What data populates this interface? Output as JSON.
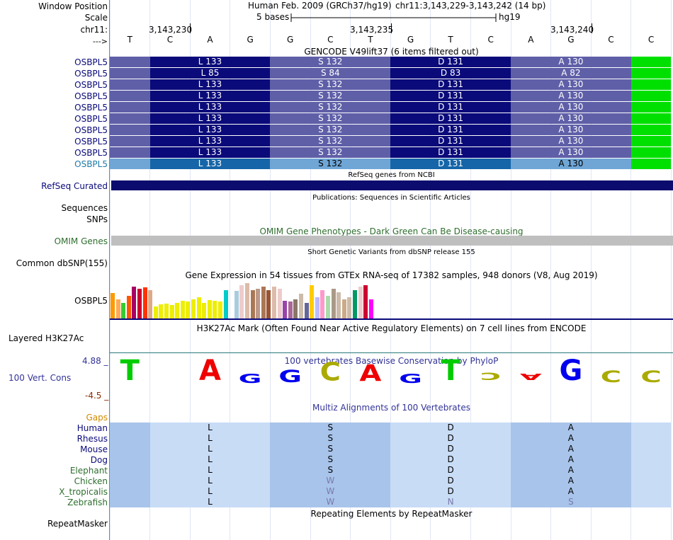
{
  "header": {
    "window_position_label": "Window Position",
    "scale_label": "Scale",
    "chrom_label": "chr11:",
    "strand_label": "--->",
    "assembly_title": "Human Feb. 2009 (GRCh37/hg19)",
    "position_text": "chr11:3,143,229-3,143,242 (14 bp)",
    "scale_text": "5 bases",
    "db_text": "hg19",
    "ticks": [
      "3,143,230",
      "3,143,235",
      "3,143,240"
    ]
  },
  "bases": [
    "T",
    "C",
    "A",
    "G",
    "G",
    "C",
    "T",
    "G",
    "T",
    "C",
    "A",
    "G",
    "C",
    "C"
  ],
  "gencode": {
    "title": "GENCODE V49lift37 (6 items filtered out)",
    "gene_label": "OSBPL5",
    "rows": [
      [
        "L 133",
        "S 132",
        "D 131",
        "A 130"
      ],
      [
        "L 85",
        "S 84",
        "D 83",
        "A 82"
      ],
      [
        "L 133",
        "S 132",
        "D 131",
        "A 130"
      ],
      [
        "L 133",
        "S 132",
        "D 131",
        "A 130"
      ],
      [
        "L 133",
        "S 132",
        "D 131",
        "A 130"
      ],
      [
        "L 133",
        "S 132",
        "D 131",
        "A 130"
      ],
      [
        "L 133",
        "S 132",
        "D 131",
        "A 130"
      ],
      [
        "L 133",
        "S 132",
        "D 131",
        "A 130"
      ],
      [
        "L 133",
        "S 132",
        "D 131",
        "A 130"
      ],
      [
        "L 133",
        "S 132",
        "D 131",
        "A 130"
      ]
    ]
  },
  "refseq": {
    "title": "RefSeq genes from NCBI",
    "label": "RefSeq Curated"
  },
  "publications": {
    "title": "Publications: Sequences in Scientific Articles",
    "label1": "Sequences",
    "label2": "SNPs"
  },
  "omim": {
    "title": "OMIM Gene Phenotypes - Dark Green Can Be Disease-causing",
    "label": "OMIM Genes"
  },
  "dbsnp": {
    "title": "Short Genetic Variants from dbSNP release 155",
    "label": "Common dbSNP(155)"
  },
  "gtex": {
    "title": "Gene Expression in 54 tissues from GTEx RNA-seq of 17382 samples, 948 donors (V8, Aug 2019)",
    "label": "OSBPL5",
    "bars": [
      {
        "c": "#ff9900",
        "h": 0.72
      },
      {
        "c": "#ffaa55",
        "h": 0.55
      },
      {
        "c": "#33cc33",
        "h": 0.45
      },
      {
        "c": "#ff5500",
        "h": 0.65
      },
      {
        "c": "#aa0066",
        "h": 0.9
      },
      {
        "c": "#cc0033",
        "h": 0.85
      },
      {
        "c": "#ff3300",
        "h": 0.88
      },
      {
        "c": "#ddaa88",
        "h": 0.8
      },
      {
        "c": "#eeee00",
        "h": 0.35
      },
      {
        "c": "#eeee00",
        "h": 0.4
      },
      {
        "c": "#eeee00",
        "h": 0.42
      },
      {
        "c": "#eeee00",
        "h": 0.38
      },
      {
        "c": "#eeee00",
        "h": 0.45
      },
      {
        "c": "#eeee00",
        "h": 0.5
      },
      {
        "c": "#eeee00",
        "h": 0.48
      },
      {
        "c": "#eeee00",
        "h": 0.55
      },
      {
        "c": "#eeee00",
        "h": 0.6
      },
      {
        "c": "#eeee00",
        "h": 0.45
      },
      {
        "c": "#eeee00",
        "h": 0.52
      },
      {
        "c": "#eeee00",
        "h": 0.5
      },
      {
        "c": "#eeee00",
        "h": 0.48
      },
      {
        "c": "#00cccc",
        "h": 0.8
      },
      {
        "c": "#ffffff",
        "h": 0.0
      },
      {
        "c": "#aaccdd",
        "h": 0.78
      },
      {
        "c": "#eecccc",
        "h": 0.95
      },
      {
        "c": "#ddbbaa",
        "h": 1.0
      },
      {
        "c": "#aa7755",
        "h": 0.8
      },
      {
        "c": "#bb9988",
        "h": 0.85
      },
      {
        "c": "#aa7755",
        "h": 0.9
      },
      {
        "c": "#995533",
        "h": 0.8
      },
      {
        "c": "#ddbbaa",
        "h": 0.9
      },
      {
        "c": "#eecccc",
        "h": 0.85
      },
      {
        "c": "#9944aa",
        "h": 0.5
      },
      {
        "c": "#aa6699",
        "h": 0.48
      },
      {
        "c": "#887766",
        "h": 0.55
      },
      {
        "c": "#ccbbaa",
        "h": 0.7
      },
      {
        "c": "#666699",
        "h": 0.45
      },
      {
        "c": "#ffcc00",
        "h": 0.95
      },
      {
        "c": "#bbbbff",
        "h": 0.6
      },
      {
        "c": "#ff99cc",
        "h": 0.8
      },
      {
        "c": "#aaddaa",
        "h": 0.65
      },
      {
        "c": "#aa9988",
        "h": 0.85
      },
      {
        "c": "#ccbbaa",
        "h": 0.75
      },
      {
        "c": "#ccaa88",
        "h": 0.55
      },
      {
        "c": "#ccbbaa",
        "h": 0.6
      },
      {
        "c": "#009966",
        "h": 0.8
      },
      {
        "c": "#eecccc",
        "h": 0.9
      },
      {
        "c": "#cc0033",
        "h": 0.95
      },
      {
        "c": "#ff00ff",
        "h": 0.55
      }
    ]
  },
  "h3k27ac": {
    "title": "H3K27Ac Mark (Often Found Near Active Regulatory Elements) on 7 cell lines from ENCODE",
    "label": "Layered H3K27Ac"
  },
  "phylop": {
    "title": "100 vertebrates Basewise Conservation by PhyloP",
    "label": "100 Vert. Cons",
    "max_label": "4.88 _",
    "min_label": "-4.5 _",
    "logo": [
      {
        "b": "T",
        "s": 1.0,
        "c": "#00cc00",
        "dir": "up"
      },
      {
        "b": "A",
        "s": 1.0,
        "c": "#ee0000",
        "dir": "up",
        "pos": 2
      },
      {
        "b": "G",
        "s": 0.45,
        "c": "#0000ee",
        "dir": "up",
        "pos": 3
      },
      {
        "b": "G",
        "s": 0.6,
        "c": "#0000ee",
        "dir": "up",
        "pos": 4
      },
      {
        "b": "C",
        "s": 0.9,
        "c": "#aaaa00",
        "dir": "up",
        "pos": 5
      },
      {
        "b": "A",
        "s": 0.8,
        "c": "#ee0000",
        "dir": "up",
        "pos": 6
      },
      {
        "b": "G",
        "s": 0.45,
        "c": "#0000ee",
        "dir": "up",
        "pos": 7
      },
      {
        "b": "T",
        "s": 1.0,
        "c": "#00cc00",
        "dir": "up",
        "pos": 8
      },
      {
        "b": "C",
        "s": 0.35,
        "c": "#aaaa00",
        "dir": "down",
        "pos": 9
      },
      {
        "b": "A",
        "s": 0.3,
        "c": "#ee0000",
        "dir": "down",
        "pos": 10
      },
      {
        "b": "G",
        "s": 1.0,
        "c": "#0000ee",
        "dir": "up",
        "pos": 11
      },
      {
        "b": "C",
        "s": 0.55,
        "c": "#aaaa00",
        "dir": "up",
        "pos": 12
      },
      {
        "b": "C",
        "s": 0.55,
        "c": "#aaaa00",
        "dir": "up",
        "pos": 13
      }
    ]
  },
  "gaps": {
    "label": "Gaps"
  },
  "multiz": {
    "title": "Multiz Alignments of 100 Vertebrates",
    "species": [
      {
        "name": "Human",
        "aa": [
          "L",
          "S",
          "D",
          "A"
        ]
      },
      {
        "name": "Rhesus",
        "aa": [
          "L",
          "S",
          "D",
          "A"
        ]
      },
      {
        "name": "Mouse",
        "aa": [
          "L",
          "S",
          "D",
          "A"
        ]
      },
      {
        "name": "Dog",
        "aa": [
          "L",
          "S",
          "D",
          "A"
        ]
      },
      {
        "name": "Elephant",
        "aa": [
          "L",
          "S",
          "D",
          "A"
        ]
      },
      {
        "name": "Chicken",
        "aa": [
          "L",
          "W",
          "D",
          "A"
        ]
      },
      {
        "name": "X_tropicalis",
        "aa": [
          "L",
          "W",
          "D",
          "A"
        ]
      },
      {
        "name": "Zebrafish",
        "aa": [
          "L",
          "W",
          "N",
          "S"
        ]
      }
    ]
  },
  "repeatmasker": {
    "title": "Repeating Elements by RepeatMasker",
    "label": "RepeatMasker"
  },
  "colors": {
    "codon_dark": "#0a0a7a",
    "codon_light": "#5f5fa8",
    "utr_green": "#00e000",
    "selected_dark": "#1565a8",
    "selected_light": "#6fa6d6",
    "refseq": "#0c0c6e",
    "omim": "#bfbfbf",
    "multiz_dark": "#a8c4ea",
    "multiz_light": "#c8dcf6",
    "label_blue": "#0a0a7a",
    "label_green": "#2e6e2e",
    "label_orange": "#d08a00"
  }
}
